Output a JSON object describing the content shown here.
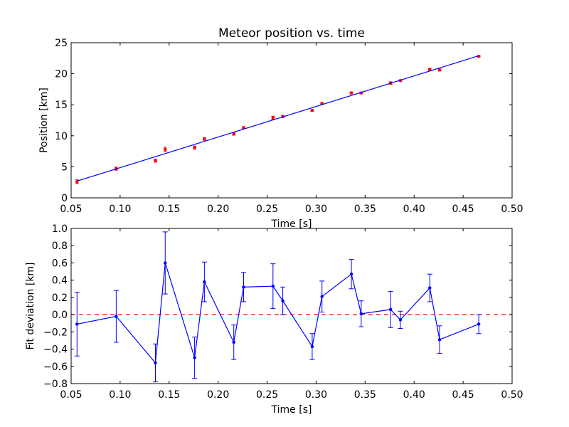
{
  "chart_data": [
    {
      "type": "scatter",
      "title": "Meteor position vs. time",
      "xlabel": "Time [s]",
      "ylabel": "Position [km]",
      "xlim": [
        0.05,
        0.5
      ],
      "ylim": [
        0,
        25
      ],
      "xticks": [
        "0.05",
        "0.10",
        "0.15",
        "0.20",
        "0.25",
        "0.30",
        "0.35",
        "0.40",
        "0.45",
        "0.50"
      ],
      "yticks": [
        "0",
        "5",
        "10",
        "15",
        "20",
        "25"
      ],
      "grid": false,
      "colors": {
        "points": "#ff0000",
        "fit": "#0000ff"
      },
      "series": [
        {
          "kind": "errorbar-points",
          "x": [
            0.056,
            0.096,
            0.136,
            0.146,
            0.176,
            0.186,
            0.216,
            0.226,
            0.256,
            0.266,
            0.296,
            0.306,
            0.336,
            0.346,
            0.376,
            0.386,
            0.416,
            0.426,
            0.466
          ],
          "y": [
            2.6,
            4.7,
            6.0,
            7.8,
            8.1,
            9.5,
            10.3,
            11.3,
            12.9,
            13.1,
            14.1,
            15.2,
            16.9,
            16.9,
            18.5,
            18.9,
            20.7,
            20.6,
            22.8
          ],
          "yerr": [
            0.3,
            0.25,
            0.25,
            0.35,
            0.25,
            0.22,
            0.2,
            0.17,
            0.25,
            0.15,
            0.15,
            0.17,
            0.17,
            0.15,
            0.2,
            0.1,
            0.16,
            0.16,
            0.1
          ]
        },
        {
          "kind": "fit-line",
          "x": [
            0.056,
            0.466
          ],
          "y": [
            2.7,
            22.9
          ]
        }
      ]
    },
    {
      "type": "line",
      "xlabel": "Time [s]",
      "ylabel": "Fit deviation [km]",
      "xlim": [
        0.05,
        0.5
      ],
      "ylim": [
        -0.8,
        1.0
      ],
      "xticks": [
        "0.05",
        "0.10",
        "0.15",
        "0.20",
        "0.25",
        "0.30",
        "0.35",
        "0.40",
        "0.45",
        "0.50"
      ],
      "yticks": [
        "−0.8",
        "−0.6",
        "−0.4",
        "−0.2",
        "0.0",
        "0.2",
        "0.4",
        "0.6",
        "0.8",
        "1.0"
      ],
      "grid": false,
      "colors": {
        "line": "#0000ff",
        "zero": "#ff0000"
      },
      "zero_line": 0,
      "series": [
        {
          "kind": "errorbar-line",
          "x": [
            0.056,
            0.096,
            0.136,
            0.146,
            0.176,
            0.186,
            0.216,
            0.226,
            0.256,
            0.266,
            0.296,
            0.306,
            0.336,
            0.346,
            0.376,
            0.386,
            0.416,
            0.426,
            0.466
          ],
          "y": [
            -0.11,
            -0.02,
            -0.56,
            0.6,
            -0.5,
            0.38,
            -0.32,
            0.32,
            0.33,
            0.16,
            -0.37,
            0.21,
            0.47,
            0.01,
            0.06,
            -0.06,
            0.31,
            -0.29,
            -0.11
          ],
          "yerr": [
            0.37,
            0.3,
            0.22,
            0.36,
            0.24,
            0.23,
            0.2,
            0.17,
            0.26,
            0.16,
            0.15,
            0.18,
            0.17,
            0.15,
            0.21,
            0.1,
            0.16,
            0.16,
            0.11
          ]
        }
      ]
    }
  ]
}
